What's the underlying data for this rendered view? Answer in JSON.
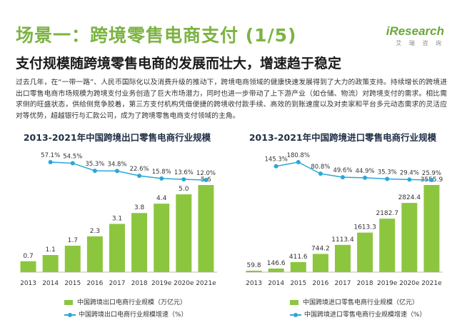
{
  "header": {
    "title": "场景一：跨境零售电商支付 (1/5)",
    "subtitle": "支付规模随跨境零售电商的发展而壮大，增速趋于稳定",
    "brand_logo": "iResearch",
    "brand_sub": "艾 瑞 咨 询"
  },
  "paragraph": "过去几年，在“一带一路”、人民币国际化以及消费升级的推动下，跨境电商领域的健康快速发展得到了大力的政策支持。持续增长的跨境进出口零售电商市场规模为跨境支付业务创造了巨大市场潜力，同时也进一步带动了上下游产业（如仓储、物流）对跨境支付的需求。相比需求侧的旺盛状态，供给侧竞争胶着，第三方支付机构凭借便捷的跨境收付款手续、高效的到账速度以及对卖家和平台多元动态需求的灵活应对等优势，超越银行与汇款公司，成为了跨境零售电商支付领域的主角。",
  "colors": {
    "bar": "#8cc63f",
    "line": "#2aa7d8",
    "title_green": "#7cb342"
  },
  "chart_data": [
    {
      "type": "bar",
      "title": "2013-2021年中国跨境出口零售电商行业规模",
      "categories": [
        "2013",
        "2014",
        "2015",
        "2016",
        "2017",
        "2018",
        "2019e",
        "2020e",
        "2021e"
      ],
      "series": [
        {
          "name": "中国跨境出口电商行业规模（万亿元）",
          "type": "bar",
          "values": [
            0.7,
            1.1,
            1.7,
            2.3,
            3.1,
            3.8,
            4.4,
            5.0,
            5.6
          ],
          "labels": [
            "0.7",
            "1.1",
            "1.7",
            "2.3",
            "3.1",
            "3.8",
            "4.4",
            "5.0",
            "5.6"
          ]
        },
        {
          "name": "中国跨境出口电商行业规模增速（%）",
          "type": "line",
          "values": [
            null,
            57.1,
            54.5,
            35.3,
            34.8,
            22.6,
            15.8,
            13.6,
            12.0
          ],
          "labels": [
            null,
            "57.1%",
            "54.5%",
            "35.3%",
            "34.8%",
            "22.6%",
            "15.8%",
            "13.6%",
            "12.0%"
          ]
        }
      ],
      "legend": [
        "中国跨境出口电商行业规模（万亿元）",
        "中国跨境出口电商行业规模增速（%）"
      ],
      "legend_position": "bottom",
      "grid": false
    },
    {
      "type": "bar",
      "title": "2013-2021年中国跨境进口零售电商行业规模",
      "categories": [
        "2013",
        "2014",
        "2015",
        "2016",
        "2017",
        "2018",
        "2019e",
        "2020e",
        "2021e"
      ],
      "series": [
        {
          "name": "中国跨境进口零售电商行业规模（亿元）",
          "type": "bar",
          "values": [
            59.8,
            146.6,
            411.6,
            744.2,
            1113.4,
            1613.3,
            2182.7,
            2824.4,
            3555.9
          ],
          "labels": [
            "59.8",
            "146.6",
            "411.6",
            "744.2",
            "1113.4",
            "1613.3",
            "2182.7",
            "2824.4",
            "3555.9"
          ]
        },
        {
          "name": "中国跨境进口零售电商行业规模增速（%）",
          "type": "line",
          "values": [
            null,
            145.3,
            180.8,
            80.8,
            49.6,
            44.9,
            35.3,
            29.4,
            25.9
          ],
          "labels": [
            null,
            "145.3%",
            "180.8%",
            "80.8%",
            "49.6%",
            "44.9%",
            "35.3%",
            "29.4%",
            "25.9%"
          ]
        }
      ],
      "legend": [
        "中国跨境进口零售电商行业规模（亿元）",
        "中国跨境进口零售电商行业规模增速（%）"
      ],
      "legend_position": "bottom",
      "grid": false
    }
  ]
}
